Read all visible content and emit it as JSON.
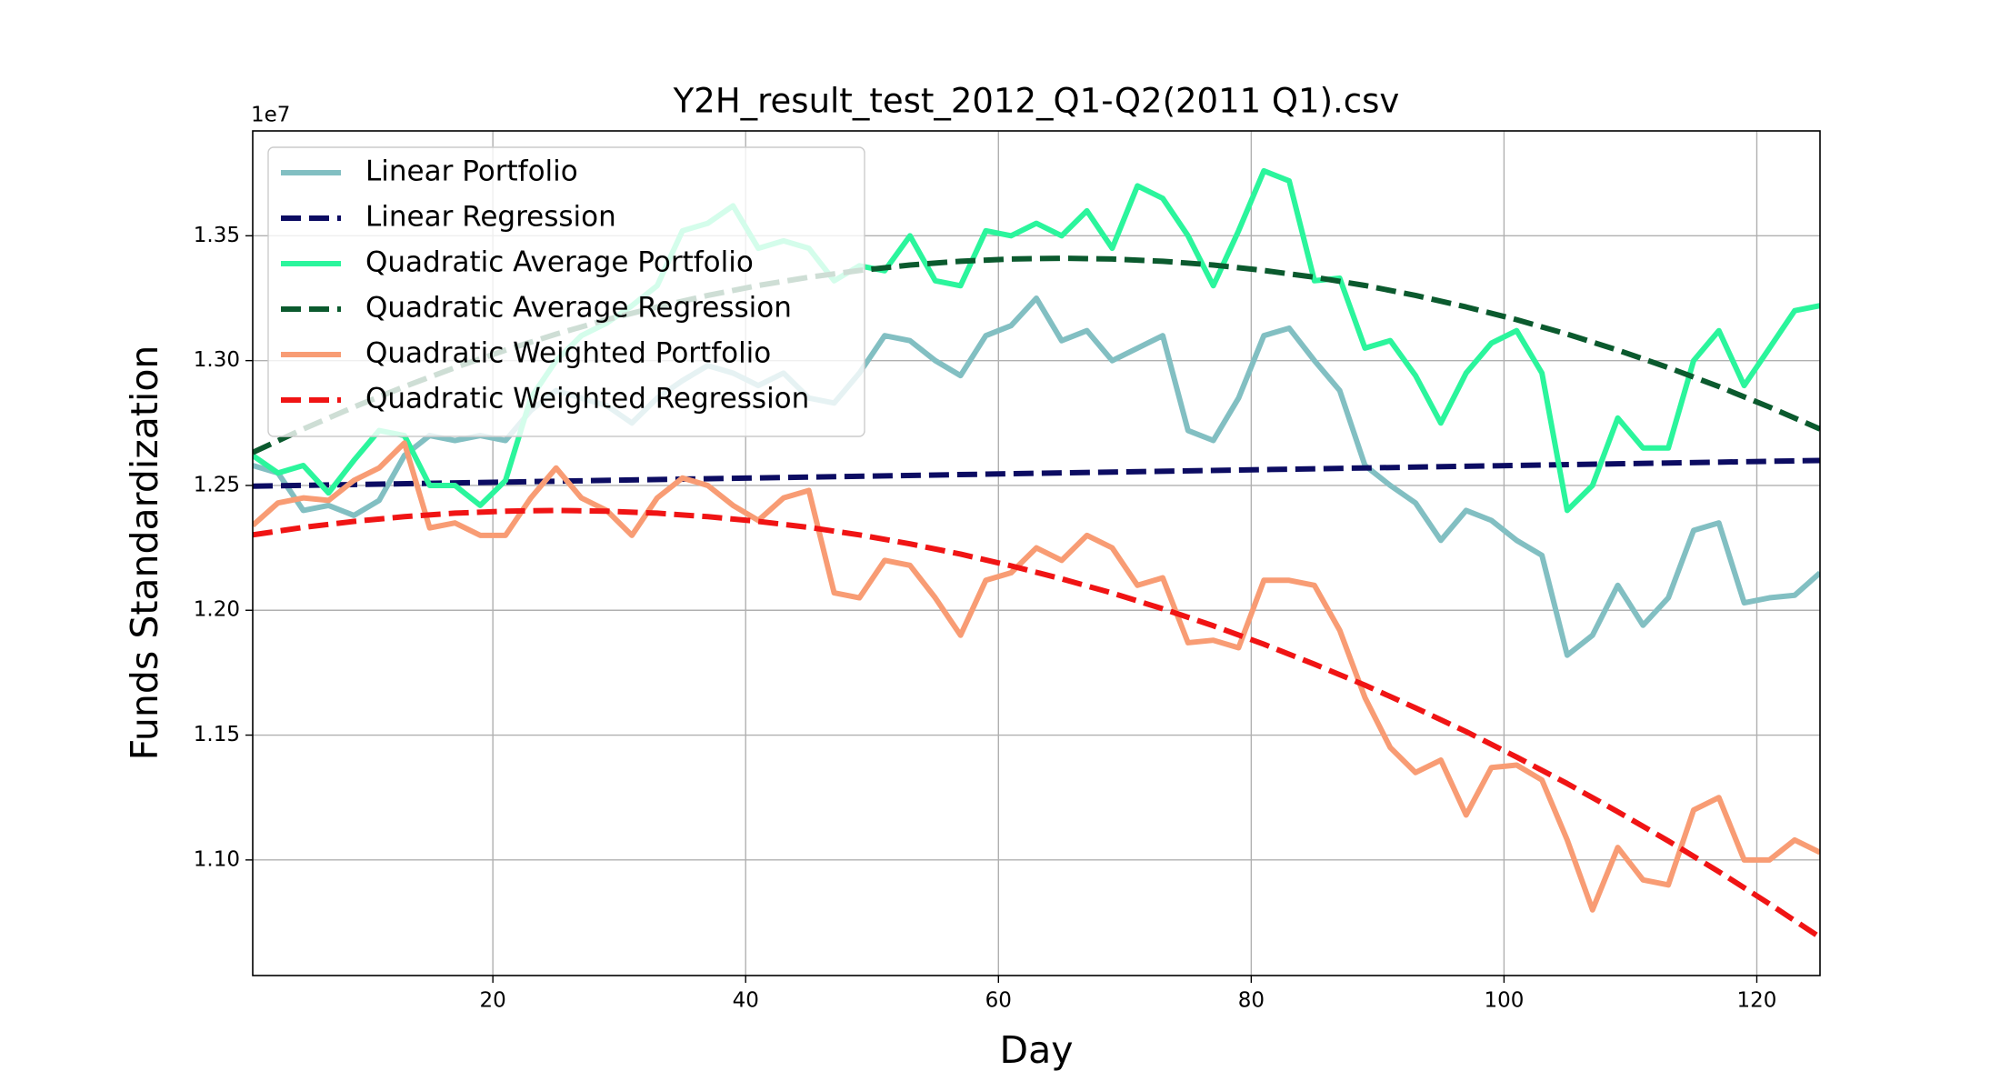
{
  "chart_data": {
    "type": "line",
    "title": "Y2H_result_test_2012_Q1-Q2(2011 Q1).csv",
    "xlabel": "Day",
    "ylabel": "Funds Standardization",
    "y_offset_label": "1e7",
    "xlim": [
      1,
      125
    ],
    "xticks": [
      20,
      40,
      60,
      80,
      100,
      120
    ],
    "ylim": [
      1.0537,
      1.392
    ],
    "yticks": [
      {
        "value": 1.1,
        "label": "1.10"
      },
      {
        "value": 1.15,
        "label": "1.15"
      },
      {
        "value": 1.2,
        "label": "1.20"
      },
      {
        "value": 1.25,
        "label": "1.25"
      },
      {
        "value": 1.3,
        "label": "1.30"
      },
      {
        "value": 1.35,
        "label": "1.35"
      }
    ],
    "grid": true,
    "legend": "upper left",
    "series": [
      {
        "name": "Linear Portfolio",
        "color": "#82bfc2",
        "style": "solid",
        "x": [
          1,
          3,
          5,
          7,
          9,
          11,
          13,
          15,
          17,
          19,
          21,
          23,
          25,
          27,
          29,
          31,
          33,
          35,
          37,
          39,
          41,
          43,
          45,
          47,
          49,
          51,
          53,
          55,
          57,
          59,
          61,
          63,
          65,
          67,
          69,
          71,
          73,
          75,
          77,
          79,
          81,
          83,
          85,
          87,
          89,
          91,
          93,
          95,
          97,
          99,
          101,
          103,
          105,
          107,
          109,
          111,
          113,
          115,
          117,
          119,
          121,
          123,
          125
        ],
        "values": [
          1.258,
          1.255,
          1.24,
          1.242,
          1.238,
          1.244,
          1.262,
          1.27,
          1.268,
          1.27,
          1.268,
          1.28,
          1.288,
          1.285,
          1.282,
          1.275,
          1.285,
          1.292,
          1.298,
          1.295,
          1.29,
          1.295,
          1.285,
          1.283,
          1.295,
          1.31,
          1.308,
          1.3,
          1.294,
          1.31,
          1.314,
          1.325,
          1.308,
          1.312,
          1.3,
          1.305,
          1.31,
          1.272,
          1.268,
          1.285,
          1.31,
          1.313,
          1.3,
          1.288,
          1.258,
          1.25,
          1.243,
          1.228,
          1.24,
          1.236,
          1.228,
          1.222,
          1.182,
          1.19,
          1.21,
          1.194,
          1.205,
          1.232,
          1.235,
          1.203,
          1.205,
          1.206,
          1.215
        ]
      },
      {
        "name": "Linear Regression",
        "color": "#0c0c62",
        "style": "dashed",
        "x": [
          1,
          125
        ],
        "values": [
          1.2497,
          1.26
        ]
      },
      {
        "name": "Quadratic Average Portfolio",
        "color": "#2bf59c",
        "style": "solid",
        "x": [
          1,
          3,
          5,
          7,
          9,
          11,
          13,
          15,
          17,
          19,
          21,
          23,
          25,
          27,
          29,
          31,
          33,
          35,
          37,
          39,
          41,
          43,
          45,
          47,
          49,
          51,
          53,
          55,
          57,
          59,
          61,
          63,
          65,
          67,
          69,
          71,
          73,
          75,
          77,
          79,
          81,
          83,
          85,
          87,
          89,
          91,
          93,
          95,
          97,
          99,
          101,
          103,
          105,
          107,
          109,
          111,
          113,
          115,
          117,
          119,
          121,
          123,
          125
        ],
        "values": [
          1.262,
          1.255,
          1.258,
          1.247,
          1.26,
          1.272,
          1.27,
          1.25,
          1.25,
          1.242,
          1.252,
          1.285,
          1.3,
          1.31,
          1.315,
          1.322,
          1.33,
          1.352,
          1.355,
          1.362,
          1.345,
          1.348,
          1.345,
          1.332,
          1.338,
          1.336,
          1.35,
          1.332,
          1.33,
          1.352,
          1.35,
          1.355,
          1.35,
          1.36,
          1.345,
          1.37,
          1.365,
          1.35,
          1.33,
          1.352,
          1.376,
          1.372,
          1.332,
          1.333,
          1.305,
          1.308,
          1.294,
          1.275,
          1.295,
          1.307,
          1.312,
          1.295,
          1.24,
          1.25,
          1.277,
          1.265,
          1.265,
          1.3,
          1.312,
          1.29,
          1.305,
          1.32,
          1.322
        ]
      },
      {
        "name": "Quadratic Average Regression",
        "color": "#0b5a2e",
        "style": "dashed",
        "x": [
          1,
          5,
          9,
          13,
          17,
          21,
          25,
          29,
          33,
          37,
          41,
          45,
          49,
          53,
          57,
          61,
          65,
          69,
          73,
          77,
          81,
          85,
          89,
          93,
          97,
          101,
          105,
          109,
          113,
          117,
          121,
          125
        ],
        "values": [
          1.2632,
          1.2726,
          1.2814,
          1.2896,
          1.2972,
          1.3042,
          1.3106,
          1.3164,
          1.3215,
          1.3261,
          1.3301,
          1.3334,
          1.3361,
          1.3383,
          1.3398,
          1.3407,
          1.341,
          1.3407,
          1.3398,
          1.3383,
          1.3361,
          1.3334,
          1.3301,
          1.3261,
          1.3215,
          1.3164,
          1.3106,
          1.3042,
          1.2972,
          1.2896,
          1.2814,
          1.2726
        ]
      },
      {
        "name": "Quadratic Weighted Portfolio",
        "color": "#f89c74",
        "style": "solid",
        "x": [
          1,
          3,
          5,
          7,
          9,
          11,
          13,
          15,
          17,
          19,
          21,
          23,
          25,
          27,
          29,
          31,
          33,
          35,
          37,
          39,
          41,
          43,
          45,
          47,
          49,
          51,
          53,
          55,
          57,
          59,
          61,
          63,
          65,
          67,
          69,
          71,
          73,
          75,
          77,
          79,
          81,
          83,
          85,
          87,
          89,
          91,
          93,
          95,
          97,
          99,
          101,
          103,
          105,
          107,
          109,
          111,
          113,
          115,
          117,
          119,
          121,
          123,
          125
        ],
        "values": [
          1.234,
          1.243,
          1.245,
          1.244,
          1.252,
          1.257,
          1.267,
          1.233,
          1.235,
          1.23,
          1.23,
          1.245,
          1.257,
          1.245,
          1.24,
          1.23,
          1.245,
          1.253,
          1.25,
          1.242,
          1.236,
          1.245,
          1.248,
          1.207,
          1.205,
          1.22,
          1.218,
          1.205,
          1.19,
          1.212,
          1.215,
          1.225,
          1.22,
          1.23,
          1.225,
          1.21,
          1.213,
          1.187,
          1.188,
          1.185,
          1.212,
          1.212,
          1.21,
          1.192,
          1.165,
          1.145,
          1.135,
          1.14,
          1.118,
          1.137,
          1.138,
          1.132,
          1.108,
          1.08,
          1.105,
          1.092,
          1.09,
          1.12,
          1.125,
          1.1,
          1.1,
          1.108,
          1.103
        ]
      },
      {
        "name": "Quadratic Weighted Regression",
        "color": "#f01414",
        "style": "dashed",
        "x": [
          1,
          5,
          9,
          13,
          17,
          21,
          25,
          29,
          33,
          37,
          41,
          45,
          49,
          53,
          57,
          61,
          65,
          69,
          73,
          77,
          81,
          85,
          89,
          93,
          97,
          101,
          105,
          109,
          113,
          117,
          121,
          125
        ],
        "values": [
          1.2302,
          1.2332,
          1.2356,
          1.2375,
          1.2389,
          1.2397,
          1.24,
          1.2397,
          1.2389,
          1.2375,
          1.2356,
          1.2332,
          1.2302,
          1.2266,
          1.2225,
          1.2178,
          1.2126,
          1.2069,
          1.2006,
          1.1938,
          1.1864,
          1.1784,
          1.17,
          1.1609,
          1.1514,
          1.1412,
          1.1306,
          1.1193,
          1.1076,
          1.0953,
          1.0824,
          1.069
        ]
      }
    ]
  }
}
